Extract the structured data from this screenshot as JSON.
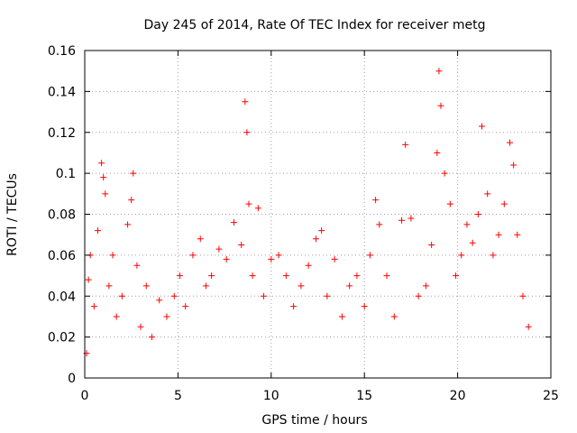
{
  "chart_data": {
    "type": "scatter",
    "title": "Day 245 of 2014, Rate Of TEC Index for receiver metg",
    "xlabel": "GPS time / hours",
    "ylabel": "ROTI / TECUs",
    "xlim": [
      0,
      25
    ],
    "ylim": [
      0,
      0.16
    ],
    "xticks": [
      0,
      5,
      10,
      15,
      20,
      25
    ],
    "xtick_labels": [
      "0",
      "5",
      "10",
      "15",
      "20",
      "25"
    ],
    "yticks": [
      0,
      0.02,
      0.04,
      0.06,
      0.08,
      0.1,
      0.12,
      0.14,
      0.16
    ],
    "ytick_labels": [
      "0",
      "0.02",
      "0.04",
      "0.06",
      "0.08",
      "0.1",
      "0.12",
      "0.14",
      "0.16"
    ],
    "grid": true,
    "marker": "+",
    "series": [
      {
        "color": "#ff0000",
        "x": [
          0.1,
          0.2,
          0.3,
          0.5,
          0.7,
          0.9,
          1.0,
          1.1,
          1.3,
          1.5,
          1.7,
          2.0,
          2.3,
          2.5,
          2.6,
          2.8,
          3.0,
          3.3,
          3.6,
          4.0,
          4.4,
          4.8,
          5.1,
          5.4,
          5.8,
          6.2,
          6.5,
          6.8,
          7.2,
          7.6,
          8.0,
          8.4,
          8.6,
          8.7,
          8.8,
          9.0,
          9.3,
          9.6,
          10.0,
          10.4,
          10.8,
          11.2,
          11.6,
          12.0,
          12.4,
          12.7,
          13.0,
          13.4,
          13.8,
          14.2,
          14.6,
          15.0,
          15.3,
          15.6,
          15.8,
          16.2,
          16.6,
          17.0,
          17.2,
          17.5,
          17.9,
          18.3,
          18.6,
          18.9,
          19.0,
          19.1,
          19.3,
          19.6,
          19.9,
          20.2,
          20.5,
          20.8,
          21.1,
          21.3,
          21.6,
          21.9,
          22.2,
          22.5,
          22.8,
          23.0,
          23.2,
          23.5,
          23.8
        ],
        "y": [
          0.012,
          0.048,
          0.06,
          0.035,
          0.072,
          0.105,
          0.098,
          0.09,
          0.045,
          0.06,
          0.03,
          0.04,
          0.075,
          0.087,
          0.1,
          0.055,
          0.025,
          0.045,
          0.02,
          0.038,
          0.03,
          0.04,
          0.05,
          0.035,
          0.06,
          0.068,
          0.045,
          0.05,
          0.063,
          0.058,
          0.076,
          0.065,
          0.135,
          0.12,
          0.085,
          0.05,
          0.083,
          0.04,
          0.058,
          0.06,
          0.05,
          0.035,
          0.045,
          0.055,
          0.068,
          0.072,
          0.04,
          0.058,
          0.03,
          0.045,
          0.05,
          0.035,
          0.06,
          0.087,
          0.075,
          0.05,
          0.03,
          0.077,
          0.114,
          0.078,
          0.04,
          0.045,
          0.065,
          0.11,
          0.15,
          0.133,
          0.1,
          0.085,
          0.05,
          0.06,
          0.075,
          0.066,
          0.08,
          0.123,
          0.09,
          0.06,
          0.07,
          0.085,
          0.115,
          0.104,
          0.07,
          0.04,
          0.025
        ]
      }
    ]
  }
}
